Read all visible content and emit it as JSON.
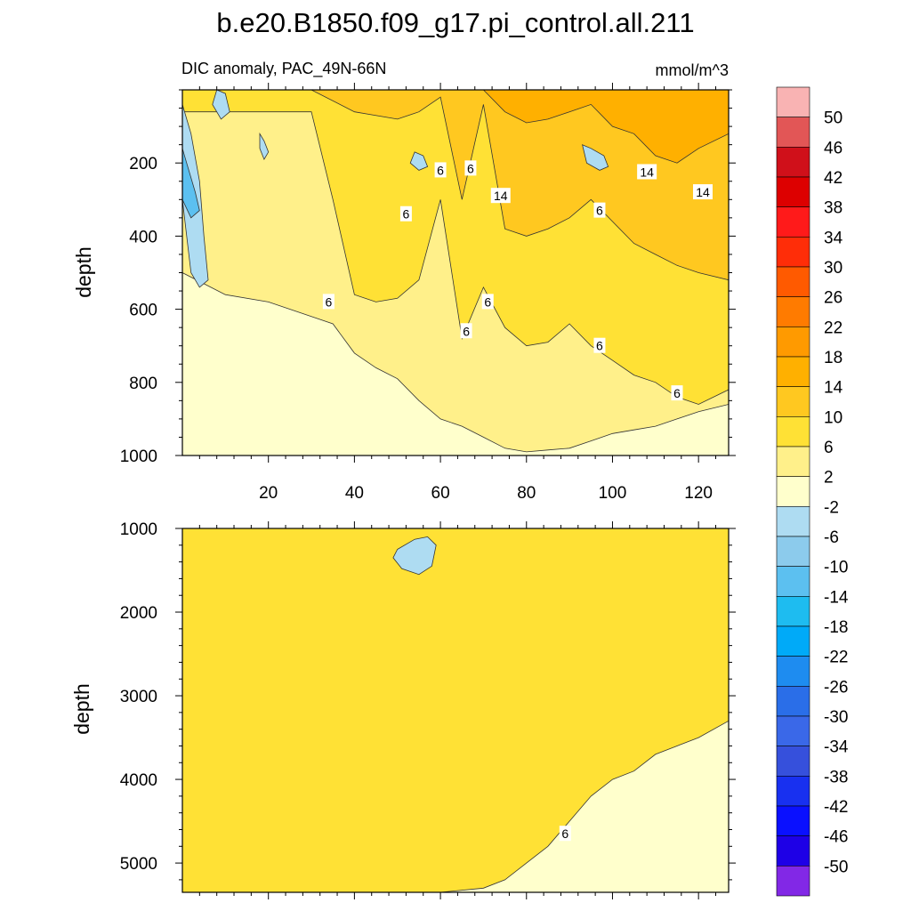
{
  "chart_data": {
    "type": "heatmap",
    "title": "b.e20.B1850.f09_g17.pi_control.all.211",
    "subtitle": "DIC anomaly, PAC_49N-66N",
    "units": "mmol/m^3",
    "colorbar": {
      "labels": [
        "50",
        "46",
        "42",
        "38",
        "34",
        "30",
        "26",
        "22",
        "18",
        "14",
        "10",
        "6",
        "2",
        "-2",
        "-6",
        "-10",
        "-14",
        "-18",
        "-22",
        "-26",
        "-30",
        "-34",
        "-38",
        "-42",
        "-46",
        "-50"
      ],
      "colors": [
        "#f9b3b3",
        "#e25656",
        "#d0101a",
        "#dd0000",
        "#ff1a1a",
        "#ff2d08",
        "#ff5a00",
        "#ff7b00",
        "#ff9a00",
        "#ffb000",
        "#ffc820",
        "#ffe135",
        "#fff08a",
        "#ffffcc",
        "#aedcf2",
        "#8ccbec",
        "#5cc0f0",
        "#1ebcf0",
        "#00aaf8",
        "#1e8cf0",
        "#2a6ee8",
        "#3a68e8",
        "#3650dc",
        "#1830f0",
        "#0a10ff",
        "#1e00e6",
        "#8228e6"
      ]
    },
    "panels": [
      {
        "name": "upper",
        "ylabel": "depth",
        "xlim": [
          0,
          127
        ],
        "ylim": [
          1000,
          0
        ],
        "x_ticks": [
          20,
          40,
          60,
          80,
          100,
          120
        ],
        "y_ticks": [
          200,
          400,
          600,
          800,
          1000
        ],
        "band_levels": [
          2,
          6,
          10,
          14
        ],
        "band_bounds": [
          {
            "x": [
              0,
              10,
              20,
              30,
              35,
              40,
              45,
              50,
              55,
              60,
              65,
              70,
              75,
              80,
              85,
              90,
              95,
              100,
              105,
              110,
              115,
              120,
              127
            ],
            "y": [
              500,
              560,
              580,
              620,
              640,
              720,
              760,
              790,
              850,
              900,
              920,
              950,
              980,
              990,
              985,
              980,
              960,
              940,
              930,
              920,
              900,
              880,
              860
            ]
          },
          {
            "x": [
              0,
              10,
              20,
              30,
              35,
              40,
              45,
              50,
              55,
              60,
              65,
              70,
              75,
              80,
              85,
              90,
              95,
              100,
              105,
              110,
              115,
              120,
              127
            ],
            "y": [
              60,
              60,
              60,
              60,
              300,
              560,
              580,
              570,
              520,
              300,
              680,
              540,
              650,
              700,
              690,
              640,
              700,
              740,
              780,
              800,
              840,
              860,
              820
            ]
          },
          {
            "x": [
              0,
              30,
              40,
              50,
              55,
              60,
              65,
              70,
              75,
              80,
              85,
              90,
              95,
              100,
              105,
              110,
              115,
              120,
              127
            ],
            "y": [
              0,
              0,
              60,
              80,
              60,
              20,
              300,
              40,
              380,
              400,
              380,
              350,
              300,
              360,
              420,
              450,
              480,
              500,
              520
            ]
          },
          {
            "x": [
              0,
              70,
              75,
              80,
              85,
              90,
              95,
              100,
              105,
              110,
              115,
              120,
              127
            ],
            "y": [
              0,
              0,
              60,
              90,
              80,
              60,
              40,
              100,
              120,
              180,
              200,
              160,
              120
            ]
          }
        ],
        "anomalies": [
          {
            "kind": "neg",
            "value": -6,
            "x": [
              0,
              2,
              4,
              5,
              6,
              4,
              2,
              0
            ],
            "y": [
              40,
              120,
              250,
              400,
              520,
              540,
              500,
              300
            ]
          },
          {
            "kind": "neg",
            "value": -14,
            "x": [
              0,
              1,
              3,
              4,
              2,
              0
            ],
            "y": [
              160,
              200,
              280,
              330,
              350,
              300
            ]
          },
          {
            "kind": "neg",
            "value": -6,
            "x": [
              8,
              10,
              11,
              9,
              7
            ],
            "y": [
              0,
              10,
              60,
              80,
              40
            ]
          },
          {
            "kind": "neg",
            "value": -6,
            "x": [
              18,
              19,
              20,
              19,
              18
            ],
            "y": [
              120,
              140,
              170,
              190,
              160
            ]
          },
          {
            "kind": "neg",
            "value": -6,
            "x": [
              54,
              56,
              57,
              55,
              53
            ],
            "y": [
              170,
              180,
              210,
              220,
              200
            ]
          },
          {
            "kind": "neg",
            "value": -6,
            "x": [
              93,
              95,
              98,
              99,
              97,
              94
            ],
            "y": [
              150,
              160,
              180,
              210,
              220,
              200
            ]
          }
        ],
        "contour_labels": [
          {
            "text": "6",
            "x": 52,
            "y": 340
          },
          {
            "text": "6",
            "x": 60,
            "y": 220
          },
          {
            "text": "6",
            "x": 67,
            "y": 215
          },
          {
            "text": "14",
            "x": 74,
            "y": 290
          },
          {
            "text": "6",
            "x": 97,
            "y": 330
          },
          {
            "text": "14",
            "x": 108,
            "y": 225
          },
          {
            "text": "14",
            "x": 121,
            "y": 280
          },
          {
            "text": "6",
            "x": 34,
            "y": 580
          },
          {
            "text": "6",
            "x": 71,
            "y": 580
          },
          {
            "text": "6",
            "x": 66,
            "y": 660
          },
          {
            "text": "6",
            "x": 97,
            "y": 700
          },
          {
            "text": "6",
            "x": 115,
            "y": 830
          }
        ]
      },
      {
        "name": "lower",
        "ylabel": "depth",
        "xlim": [
          0,
          127
        ],
        "ylim": [
          5350,
          1000
        ],
        "y_ticks": [
          1000,
          2000,
          3000,
          4000,
          5000
        ],
        "band_levels": [
          2,
          6
        ],
        "band_bounds": [
          {
            "x": [
              0,
              10,
              20,
              30,
              35,
              40,
              45,
              50,
              55,
              60,
              65,
              70,
              75,
              80,
              85,
              90,
              95,
              100,
              105,
              110,
              115,
              120,
              127
            ],
            "y": [
              5350,
              5350,
              5350,
              5350,
              5000,
              4400,
              4000,
              3700,
              3550,
              3450,
              3300,
              3200,
              3100,
              3000,
              2900,
              2800,
              2700,
              2600,
              2500,
              2400,
              2300,
              2200,
              2100
            ]
          },
          {
            "x": [
              0,
              60,
              70,
              75,
              80,
              85,
              90,
              95,
              100,
              105,
              110,
              115,
              120,
              127
            ],
            "y": [
              5350,
              5350,
              5300,
              5200,
              5000,
              4800,
              4500,
              4200,
              4000,
              3900,
              3700,
              3600,
              3500,
              3300
            ]
          }
        ],
        "anomalies": [
          {
            "kind": "neg",
            "value": -6,
            "x": [
              50,
              54,
              57,
              59,
              58,
              55,
              51,
              49
            ],
            "y": [
              1250,
              1130,
              1100,
              1200,
              1450,
              1550,
              1480,
              1350
            ]
          }
        ],
        "contour_labels": [
          {
            "text": "6",
            "x": 89,
            "y": 4650
          }
        ]
      }
    ]
  }
}
